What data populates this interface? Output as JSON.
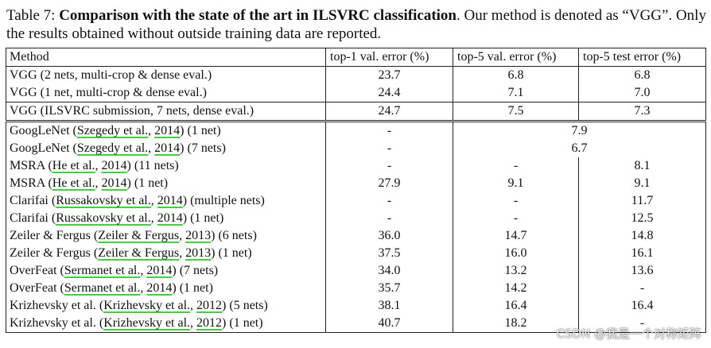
{
  "caption": {
    "label": "Table 7:",
    "title": "Comparison with the state of the art in ILSVRC classification",
    "rest": ". Our method is denoted as “VGG”. Only the results obtained without outside training data are reported."
  },
  "table": {
    "headers": [
      "Method",
      "top-1 val. error (%)",
      "top-5 val. error (%)",
      "top-5 test error (%)"
    ],
    "rows": [
      {
        "pre": "VGG (2 nets, multi-crop & dense eval.)",
        "top1": "23.7",
        "top5val": "6.8",
        "top5test": "6.8"
      },
      {
        "pre": "VGG (1 net, multi-crop & dense eval.)",
        "top1": "24.4",
        "top5val": "7.1",
        "top5test": "7.0"
      },
      {
        "pre": "VGG (ILSVRC submission, 7 nets, dense eval.)",
        "top1": "24.7",
        "top5val": "7.5",
        "top5test": "7.3"
      },
      {
        "pre": "GoogLeNet (",
        "cite1": "Szegedy et al.",
        "mid": ", ",
        "cite2": "2014",
        "post": ") (1 net)",
        "top1": "-",
        "top5merged": "7.9"
      },
      {
        "pre": "GoogLeNet (",
        "cite1": "Szegedy et al.",
        "mid": ", ",
        "cite2": "2014",
        "post": ") (7 nets)",
        "top1": "-",
        "top5merged": "6.7"
      },
      {
        "pre": "MSRA (",
        "cite1": "He et al.",
        "mid": ", ",
        "cite2": "2014",
        "post": ") (11 nets)",
        "top1": "-",
        "top5val": "-",
        "top5test": "8.1"
      },
      {
        "pre": "MSRA (",
        "cite1": "He et al.",
        "mid": ", ",
        "cite2": "2014",
        "post": ") (1 net)",
        "top1": "27.9",
        "top5val": "9.1",
        "top5test": "9.1"
      },
      {
        "pre": "Clarifai (",
        "cite1": "Russakovsky et al.",
        "mid": ", ",
        "cite2": "2014",
        "post": ") (multiple nets)",
        "top1": "-",
        "top5val": "-",
        "top5test": "11.7"
      },
      {
        "pre": "Clarifai (",
        "cite1": "Russakovsky et al.",
        "mid": ", ",
        "cite2": "2014",
        "post": ") (1 net)",
        "top1": "-",
        "top5val": "-",
        "top5test": "12.5"
      },
      {
        "pre": "Zeiler & Fergus (",
        "cite1": "Zeiler & Fergus",
        "mid": ", ",
        "cite2": "2013",
        "post": ") (6 nets)",
        "top1": "36.0",
        "top5val": "14.7",
        "top5test": "14.8"
      },
      {
        "pre": "Zeiler & Fergus (",
        "cite1": "Zeiler & Fergus",
        "mid": ", ",
        "cite2": "2013",
        "post": ") (1 net)",
        "top1": "37.5",
        "top5val": "16.0",
        "top5test": "16.1"
      },
      {
        "pre": "OverFeat (",
        "cite1": "Sermanet et al.",
        "mid": ", ",
        "cite2": "2014",
        "post": ") (7 nets)",
        "top1": "34.0",
        "top5val": "13.2",
        "top5test": "13.6"
      },
      {
        "pre": "OverFeat (",
        "cite1": "Sermanet et al.",
        "mid": ", ",
        "cite2": "2014",
        "post": ") (1 net)",
        "top1": "35.7",
        "top5val": "14.2",
        "top5test": "-"
      },
      {
        "pre": "Krizhevsky et al. (",
        "cite1": "Krizhevsky et al.",
        "mid": ", ",
        "cite2": "2012",
        "post": ") (5 nets)",
        "top1": "38.1",
        "top5val": "16.4",
        "top5test": "16.4"
      },
      {
        "pre": "Krizhevsky et al. (",
        "cite1": "Krizhevsky et al.",
        "mid": ", ",
        "cite2": "2012",
        "post": ") (1 net)",
        "top1": "40.7",
        "top5val": "18.2",
        "top5test": "-"
      }
    ]
  },
  "watermark": "CSDN @我是一个对称矩阵",
  "colors": {
    "citation_underline": "#3fcf3f",
    "text": "#111111",
    "rule": "#222222"
  }
}
